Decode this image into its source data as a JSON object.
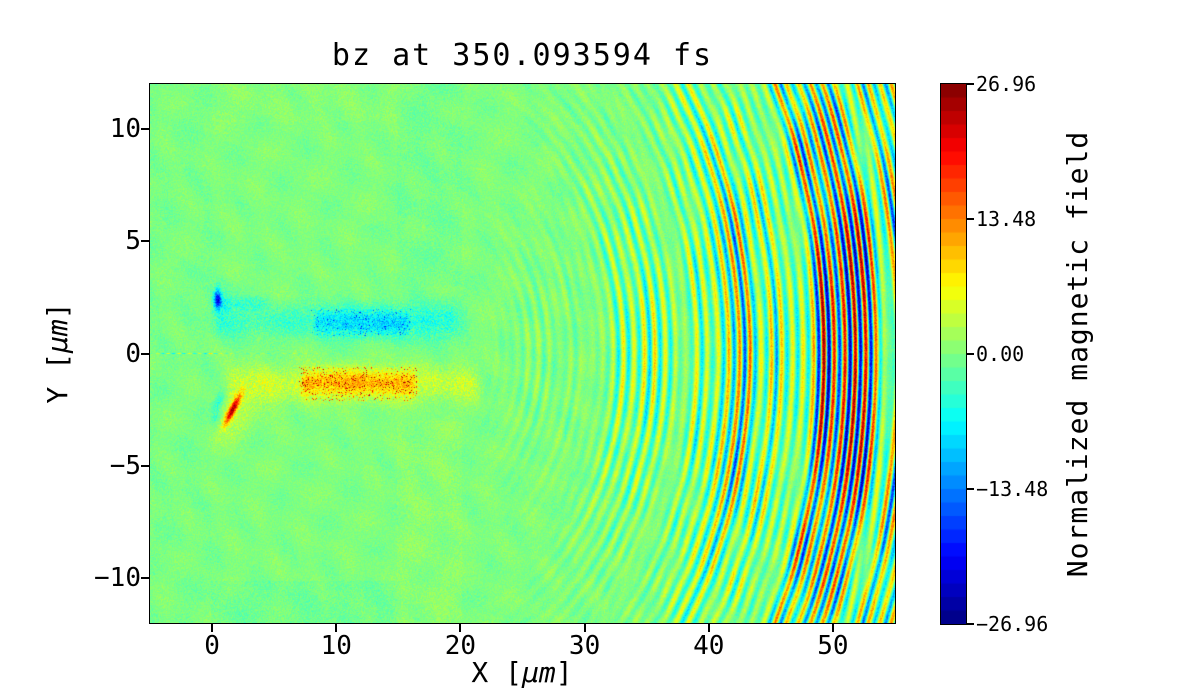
{
  "chart_data": {
    "type": "heatmap",
    "title": "bz at 350.093594 fs",
    "xlabel": {
      "pre": "X [",
      "unit": "μm",
      "post": "]"
    },
    "ylabel": {
      "pre": "Y [",
      "unit": "μm",
      "post": "]"
    },
    "xlim": [
      -5,
      55
    ],
    "ylim": [
      -12,
      12
    ],
    "xticks": {
      "values": [
        0,
        10,
        20,
        30,
        40,
        50
      ],
      "labels": [
        "0",
        "10",
        "20",
        "30",
        "40",
        "50"
      ]
    },
    "yticks": {
      "values": [
        10,
        5,
        0,
        -5,
        -10
      ],
      "labels": [
        "10",
        "5",
        "0",
        "−5",
        "−10"
      ]
    },
    "colorbar": {
      "label": "Normalized magnetic field",
      "vmin": -26.96,
      "vmax": 26.96,
      "levels": 40,
      "colormap": "jet",
      "ticks": {
        "values": [
          26.96,
          13.48,
          0,
          -13.48,
          -26.96
        ],
        "labels": [
          "26.96",
          "13.48",
          "0.00",
          "−13.48",
          "−26.96"
        ]
      }
    },
    "field_model": {
      "background_value": 0,
      "noise_amplitude": 1.15,
      "wave": {
        "center_x_um": 16.5,
        "anisotropy": 1.3,
        "wavelength_um": 0.85,
        "max_amplitude": 27,
        "onset_radius_um": 2,
        "growth_radius_um": 38,
        "growth_power": 1.6,
        "angular_width_rad": 0.62
      },
      "wave2": {
        "center_x_um": 6,
        "anisotropy": 1.15,
        "wavelength_um": 0.8,
        "amplitude": 6.5,
        "onset_radius_um": 13,
        "growth_radius_um": 40,
        "angular_width_rad": 0.55
      },
      "gaussian_features": [
        {
          "cx": 0.45,
          "cy": 2.4,
          "sx": 0.28,
          "sy": 0.38,
          "rot": 0,
          "amp": -19
        },
        {
          "cx": 0.55,
          "cy": 2.3,
          "sx": 0.9,
          "sy": 1.0,
          "rot": 0,
          "amp": -3.0
        },
        {
          "cx": 1.65,
          "cy": -2.5,
          "sx": 0.85,
          "sy": 0.22,
          "rot": 45,
          "amp": 22
        },
        {
          "cx": 0.55,
          "cy": -2.15,
          "sx": 0.7,
          "sy": 0.3,
          "rot": 45,
          "amp": -4.5
        },
        {
          "cx": 0.35,
          "cy": -2.85,
          "sx": 0.4,
          "sy": 0.28,
          "rot": 45,
          "amp": -3.5
        },
        {
          "cx": 1.5,
          "cy": -3.1,
          "sx": 1.5,
          "sy": 0.9,
          "rot": 0,
          "amp": 2.6
        },
        {
          "cx": 3.5,
          "cy": -2.0,
          "sx": 1.8,
          "sy": 0.8,
          "rot": 0,
          "amp": 1.6
        }
      ],
      "channel_stripes": [
        {
          "yc": 1.45,
          "ys": 0.75,
          "x0": 0.3,
          "x1": 19.5,
          "w": 1.2,
          "amp": -3.2
        },
        {
          "yc": 1.35,
          "ys": 0.6,
          "x0": 8.3,
          "x1": 15.9,
          "w": 0.8,
          "amp": -5.2
        },
        {
          "yc": 1.3,
          "ys": 1.0,
          "x0": 15.9,
          "x1": 20.5,
          "w": 1.0,
          "amp": -1.8
        },
        {
          "yc": 2.25,
          "ys": 0.28,
          "x0": 0.6,
          "x1": 4.5,
          "w": 0.8,
          "amp": -2.2
        },
        {
          "yc": -1.35,
          "ys": 0.8,
          "x0": 1.2,
          "x1": 21.5,
          "w": 1.5,
          "amp": 3.6
        },
        {
          "yc": -1.3,
          "ys": 0.55,
          "x0": 7.3,
          "x1": 16.3,
          "w": 0.8,
          "amp": 7.0
        }
      ],
      "speckle_regions": [
        {
          "x0": 7,
          "x1": 16.5,
          "y0": -2.1,
          "y1": -0.6,
          "thresh": 0.9,
          "amp": 12
        },
        {
          "x0": 8,
          "x1": 16.0,
          "y0": 0.8,
          "y1": 2.0,
          "thresh": 0.92,
          "amp": -7
        }
      ],
      "tint_rects": [
        {
          "x0": 14.9,
          "x1": 20.1,
          "y0": 3,
          "y1": 12,
          "amp": -0.55
        },
        {
          "x0": 14.9,
          "x1": 20.1,
          "y0": -12,
          "y1": -3,
          "amp": 0.55
        },
        {
          "x0": -0.1,
          "x1": 15.2,
          "y0": -12,
          "y1": -10.15,
          "amp": -0.7
        },
        {
          "x0": -0.1,
          "x1": 15.2,
          "y0": 10.3,
          "y1": 12,
          "amp": 0.35
        },
        {
          "x0": -5,
          "x1": 0,
          "y0": -12,
          "y1": 12,
          "amp": -0.2
        }
      ]
    }
  }
}
